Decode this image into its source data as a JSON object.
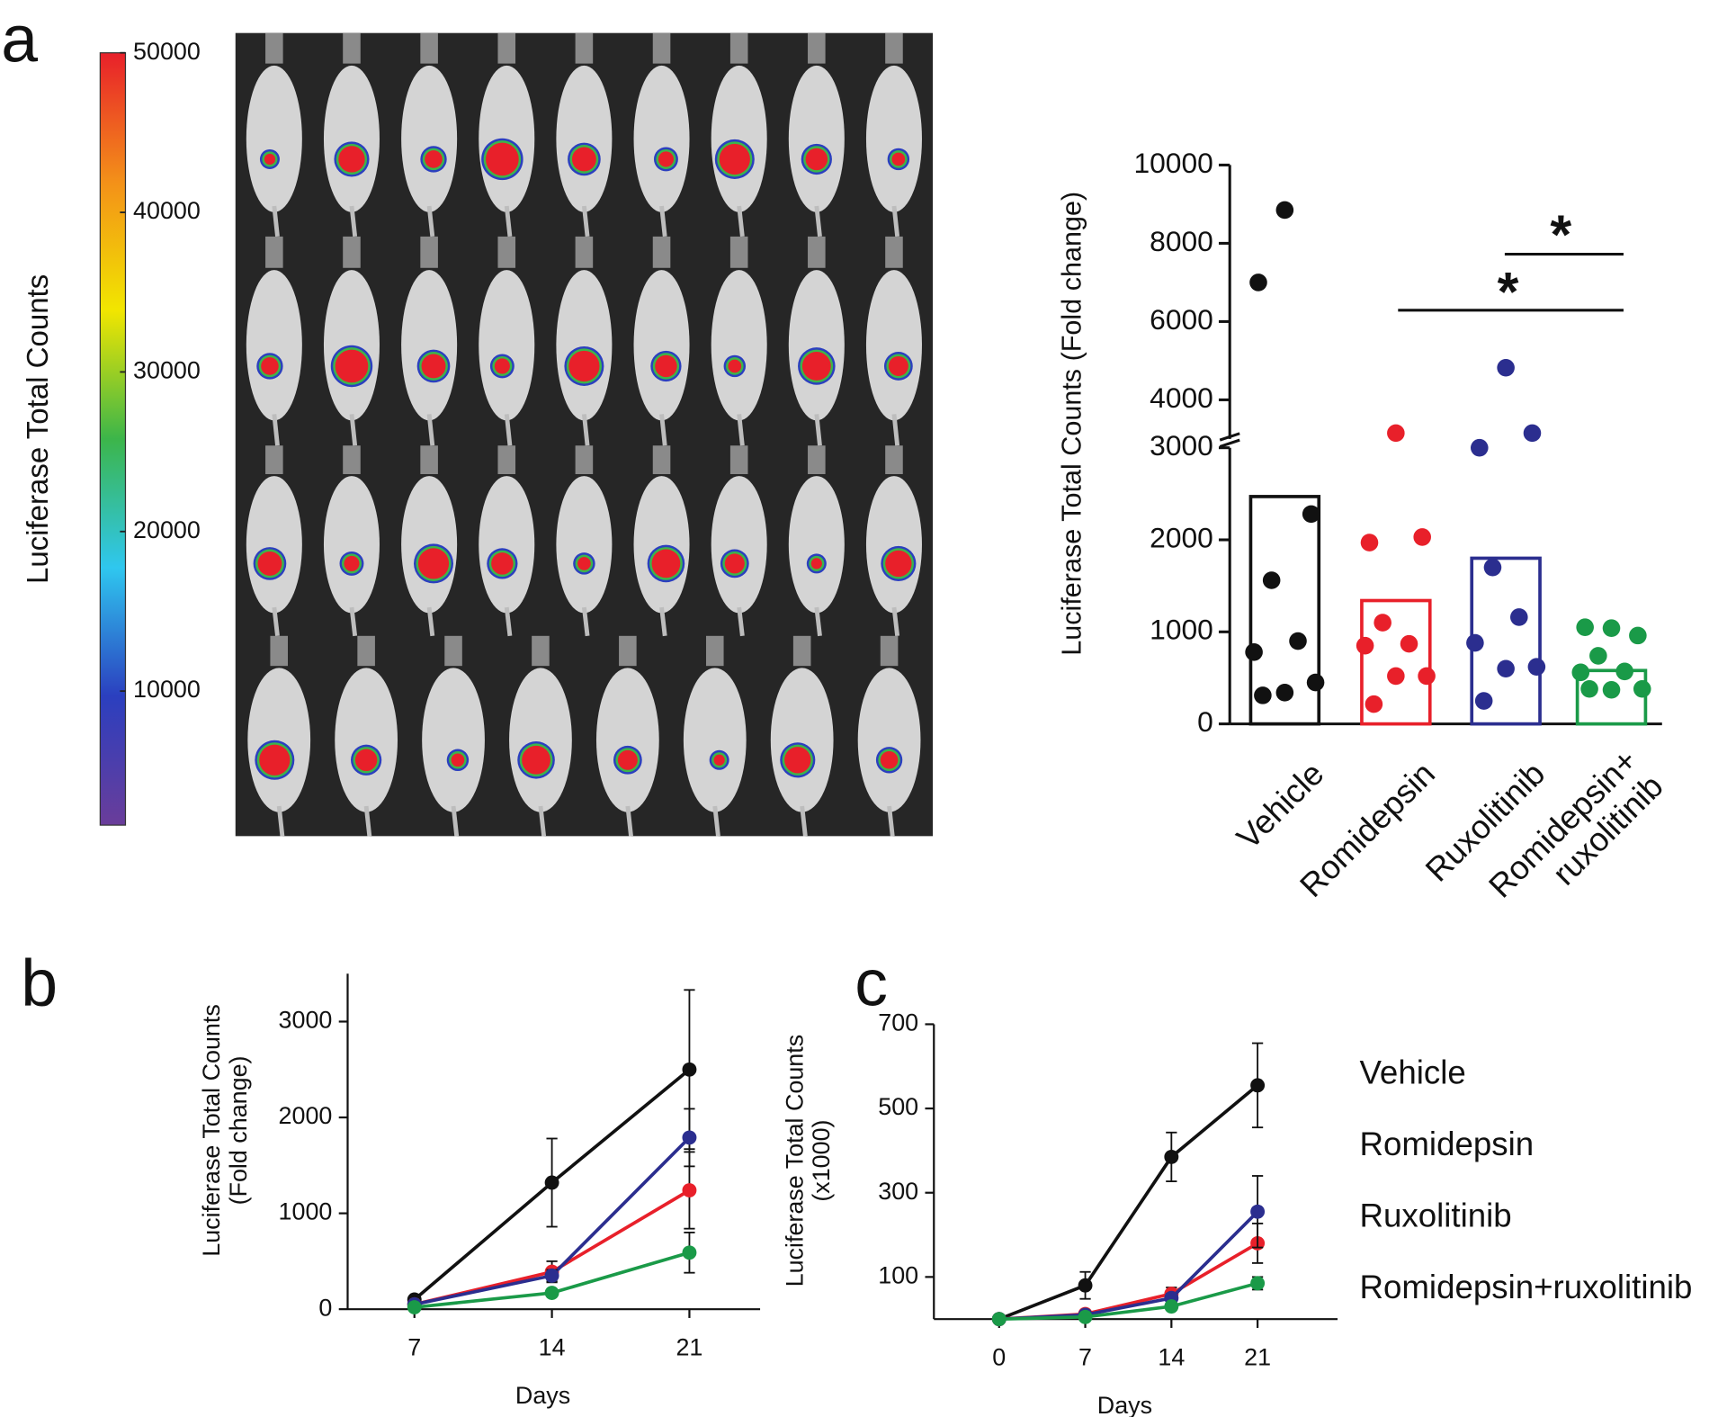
{
  "panel_labels": [
    "a",
    "b",
    "c"
  ],
  "chart_data": [
    {
      "type": "colorbar",
      "ylabel": "Luciferase Total Counts",
      "ylim": [
        1600,
        50000
      ],
      "yticks": [
        10000,
        20000,
        30000,
        40000,
        50000
      ],
      "colors": [
        "#6a3d9a",
        "#2b3fbf",
        "#2fc7ef",
        "#3cb54a",
        "#f2e600",
        "#f39019",
        "#e8202a"
      ]
    },
    {
      "type": "bar_points",
      "ylabel": "Luciferase Total Counts (Fold change)",
      "categories": [
        "Vehicle",
        "Romidepsin",
        "Ruxolitinib",
        "Romidepsin+\nruxolitinib"
      ],
      "category_colors": [
        "#111111",
        "#e8202a",
        "#2b2e8f",
        "#1a9a48"
      ],
      "values": [
        2470,
        1340,
        1800,
        580
      ],
      "points": [
        [
          8850,
          7000,
          2280,
          1560,
          900,
          780,
          450,
          340,
          310
        ],
        [
          3150,
          1970,
          2030,
          1100,
          870,
          850,
          520,
          520,
          215
        ],
        [
          4820,
          3000,
          3150,
          1700,
          1160,
          880,
          620,
          600,
          250
        ],
        [
          1040,
          1050,
          960,
          740,
          570,
          560,
          380,
          370,
          380
        ]
      ],
      "ylim_segments": [
        [
          0,
          3000
        ],
        [
          3000,
          10000
        ]
      ],
      "yticks": [
        0,
        1000,
        2000,
        3000,
        4000,
        6000,
        8000,
        10000
      ],
      "annotations": [
        "*",
        "*"
      ]
    },
    {
      "type": "line",
      "xlabel": "Days",
      "ylabel": "Luciferase Total Counts\n(Fold change)",
      "x": [
        7,
        14,
        21
      ],
      "xlim": [
        3.6,
        24.6
      ],
      "xticks": [
        7,
        14,
        21
      ],
      "ylim": [
        0,
        3500
      ],
      "yticks": [
        0,
        1000,
        2000,
        3000
      ],
      "series": [
        {
          "color": "#111111",
          "values": [
            100,
            1320,
            2500
          ],
          "errors": [
            10,
            460,
            830
          ]
        },
        {
          "color": "#e8202a",
          "values": [
            50,
            390,
            1240
          ],
          "errors": [
            10,
            110,
            400
          ]
        },
        {
          "color": "#2b2e8f",
          "values": [
            50,
            350,
            1790
          ],
          "errors": [
            10,
            60,
            300
          ]
        },
        {
          "color": "#1a9a48",
          "values": [
            20,
            170,
            590
          ],
          "errors": [
            5,
            30,
            210
          ]
        }
      ]
    },
    {
      "type": "line",
      "xlabel": "Days",
      "ylabel": "Luciferase Total Counts\n(x1000)",
      "x": [
        0,
        7,
        14,
        21
      ],
      "xlim": [
        -5.3,
        27.5
      ],
      "xticks": [
        0,
        7,
        14,
        21
      ],
      "ylim": [
        0,
        700
      ],
      "yticks": [
        100,
        300,
        500,
        700
      ],
      "series": [
        {
          "name": "Vehicle",
          "color": "#111111",
          "values": [
            0,
            80,
            385,
            555
          ],
          "errors": [
            0,
            32,
            58,
            100
          ]
        },
        {
          "name": "Romidepsin",
          "color": "#e8202a",
          "values": [
            0,
            12,
            60,
            180
          ],
          "errors": [
            0,
            5,
            15,
            47
          ]
        },
        {
          "name": "Ruxolitinib",
          "color": "#2b2e8f",
          "values": [
            0,
            10,
            50,
            255
          ],
          "errors": [
            0,
            4,
            10,
            85
          ]
        },
        {
          "name": "Romidepsin+ruxolitinib",
          "color": "#1a9a48",
          "values": [
            0,
            5,
            30,
            85
          ],
          "errors": [
            0,
            2,
            5,
            15
          ]
        }
      ]
    }
  ]
}
